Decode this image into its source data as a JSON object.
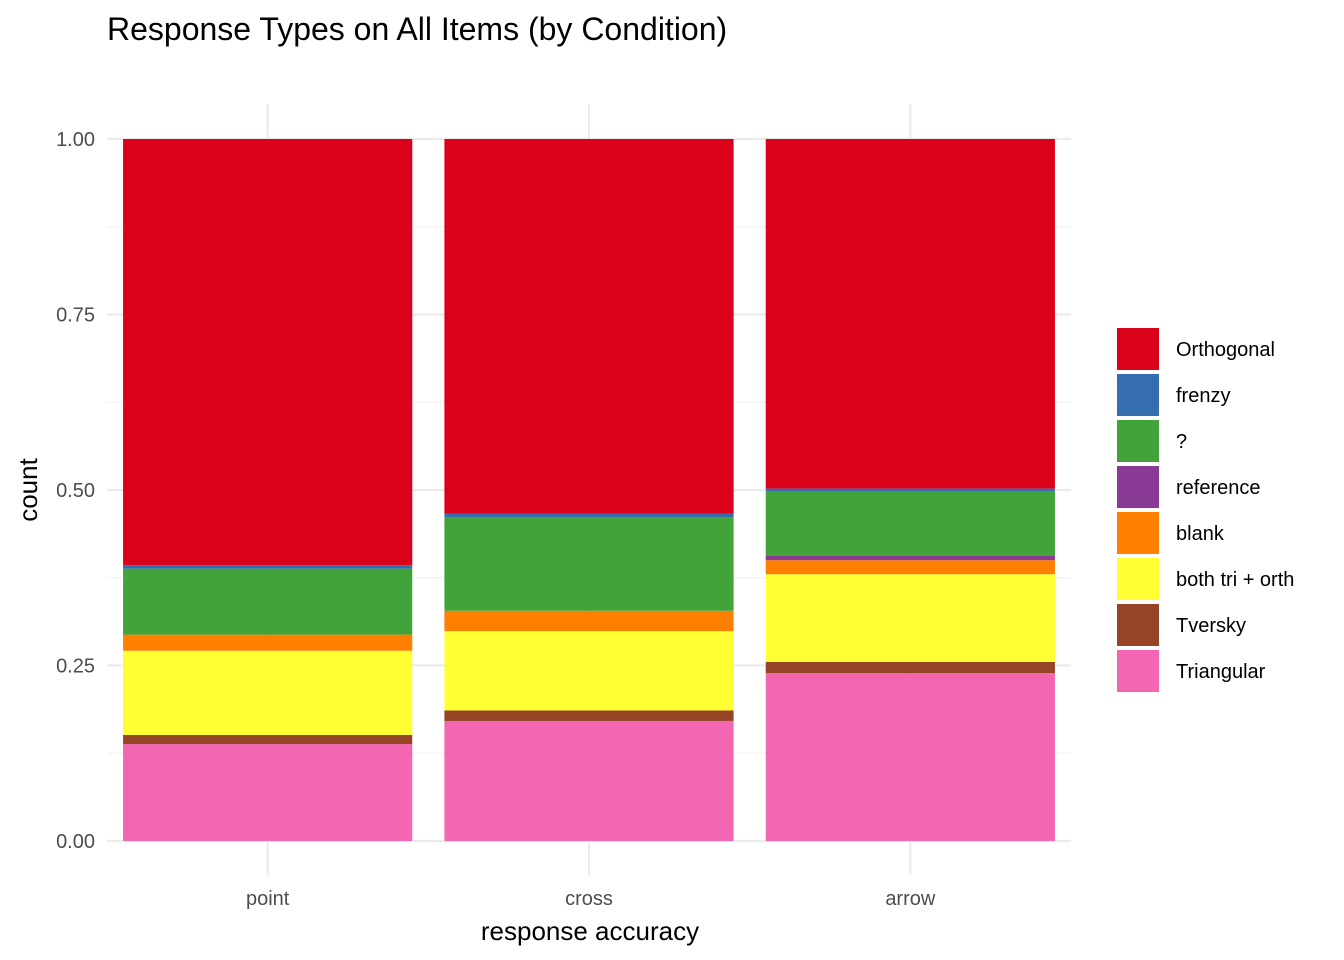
{
  "chart_data": {
    "type": "bar",
    "stacked": true,
    "title": "Response Types on All Items (by Condition)",
    "xlabel": "response accuracy",
    "ylabel": "count",
    "categories": [
      "point",
      "cross",
      "arrow"
    ],
    "ylim": [
      0,
      1
    ],
    "yticks": [
      "0.00",
      "0.25",
      "0.50",
      "0.75",
      "1.00"
    ],
    "grid": true,
    "legend_position": "right",
    "series": [
      {
        "name": "Triangular",
        "color": "#F366B1",
        "values": [
          0.138,
          0.171,
          0.239
        ]
      },
      {
        "name": "Tversky",
        "color": "#964426",
        "values": [
          0.013,
          0.015,
          0.016
        ]
      },
      {
        "name": "both tri + orth",
        "color": "#FFFF33",
        "values": [
          0.12,
          0.113,
          0.125
        ]
      },
      {
        "name": "blank",
        "color": "#FF7F00",
        "values": [
          0.023,
          0.029,
          0.02
        ]
      },
      {
        "name": "reference",
        "color": "#893A95",
        "values": [
          0.0,
          0.0,
          0.006
        ]
      },
      {
        "name": "?",
        "color": "#42A33A",
        "values": [
          0.094,
          0.133,
          0.092
        ]
      },
      {
        "name": "frenzy",
        "color": "#346EAE",
        "values": [
          0.005,
          0.005,
          0.004
        ]
      },
      {
        "name": "Orthogonal",
        "color": "#DA011A",
        "values": [
          0.607,
          0.534,
          0.498
        ]
      }
    ],
    "legend_order": [
      "Orthogonal",
      "frenzy",
      "?",
      "reference",
      "blank",
      "both tri + orth",
      "Tversky",
      "Triangular"
    ]
  }
}
